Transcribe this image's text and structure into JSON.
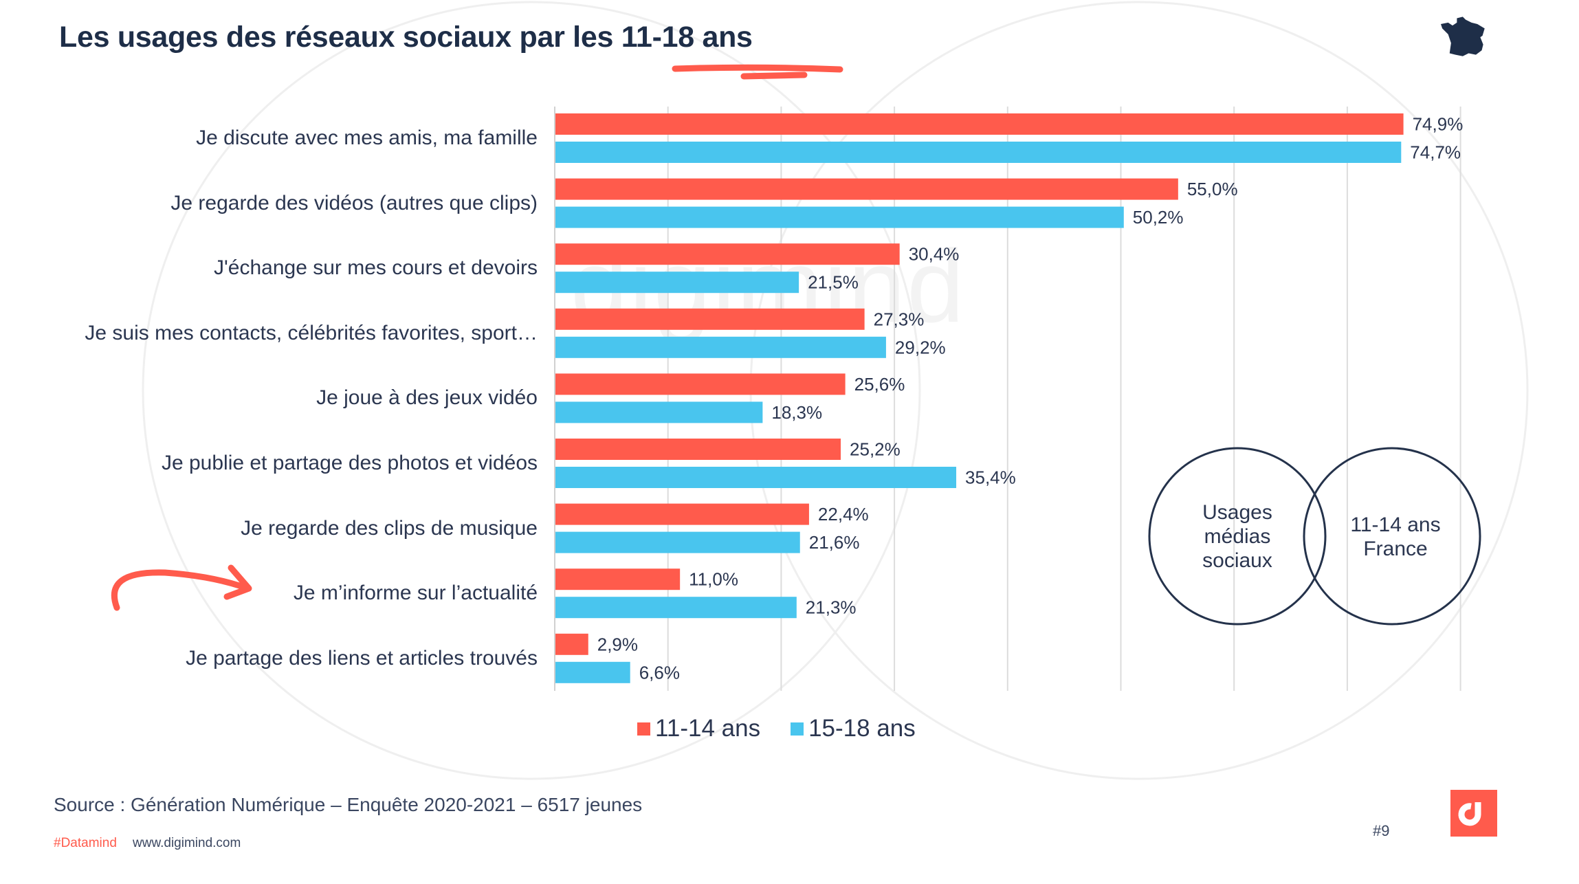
{
  "header": {
    "title": "Les usages des réseaux sociaux par les 11-18 ans",
    "country_icon": "france-map-icon"
  },
  "watermark": "digimind",
  "colors": {
    "series_11_14": "#ff5b4c",
    "series_15_18": "#49c5ee",
    "text": "#24324b",
    "accent": "#ff5b4c"
  },
  "chart_data": {
    "type": "bar",
    "orientation": "horizontal",
    "title": "Les usages des réseaux sociaux par les 11-18 ans",
    "xlabel": "",
    "ylabel": "",
    "xlim": [
      0,
      80
    ],
    "grid": true,
    "legend_position": "bottom",
    "categories": [
      "Je discute avec mes amis, ma famille",
      "Je regarde des vidéos (autres que clips)",
      "J'échange sur mes cours et  devoirs",
      "Je suis mes contacts, célébrités favorites, sport…",
      "Je joue à des jeux vidéo",
      "Je publie et partage des photos et vidéos",
      "Je regarde des clips de musique",
      "Je m’informe sur l’actualité",
      "Je partage des liens et  articles trouvés"
    ],
    "series": [
      {
        "name": "11-14 ans",
        "values": [
          74.9,
          55.0,
          30.4,
          27.3,
          25.6,
          25.2,
          22.4,
          11.0,
          2.9
        ],
        "labels": [
          "74,9%",
          "55,0%",
          "30,4%",
          "27,3%",
          "25,6%",
          "25,2%",
          "22,4%",
          "11,0%",
          "2,9%"
        ]
      },
      {
        "name": "15-18 ans",
        "values": [
          74.7,
          50.2,
          21.5,
          29.2,
          18.3,
          35.4,
          21.6,
          21.3,
          6.6
        ],
        "labels": [
          "74,7%",
          "50,2%",
          "21,5%",
          "29,2%",
          "18,3%",
          "35,4%",
          "21,6%",
          "21,3%",
          "6,6%"
        ]
      }
    ],
    "highlighted_category": "Je m’informe sur l’actualité"
  },
  "legend": [
    {
      "label": "11-14 ans"
    },
    {
      "label": "15-18 ans"
    }
  ],
  "venn": {
    "left": "Usages\nmédias\nsociaux",
    "left_lines": [
      "Usages",
      "médias",
      "sociaux"
    ],
    "right_lines": [
      "11-14 ans",
      "France"
    ]
  },
  "footer": {
    "source": "Source : Génération Numérique – Enquête 2020-2021 – 6517 jeunes",
    "hashtag": "#Datamind",
    "website": "www.digimind.com",
    "page_number": "#9",
    "logo_icon": "digimind-logo-icon"
  }
}
